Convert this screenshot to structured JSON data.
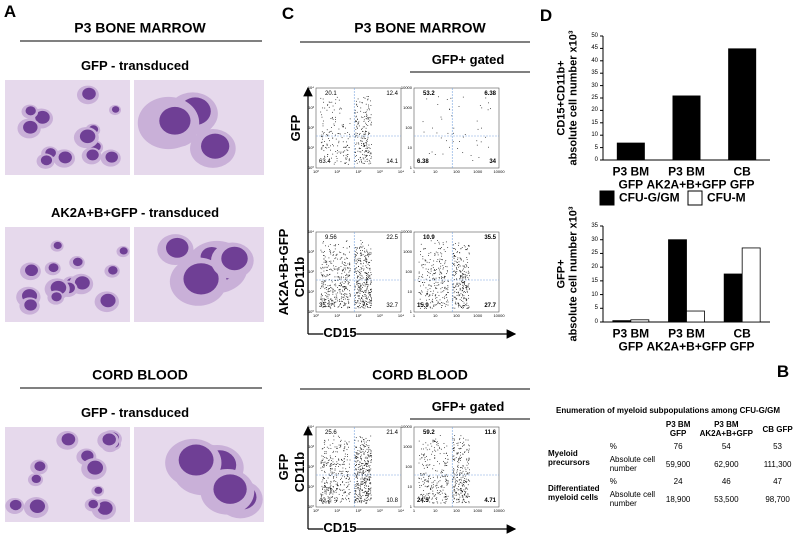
{
  "panel_labels": [
    "A",
    "C",
    "D",
    "B"
  ],
  "panel_a": {
    "blocks": [
      {
        "title": "P3 BONE MARROW",
        "rows": [
          "GFP - transduced",
          "AK2A+B+GFP - transduced"
        ]
      },
      {
        "title": "CORD BLOOD",
        "rows": [
          "GFP - transduced"
        ]
      }
    ]
  },
  "panel_c": {
    "ticks_log": [
      "10⁰",
      "10¹",
      "10²",
      "10³",
      "10⁴"
    ],
    "ticks_lin": [
      "1",
      "10",
      "100",
      "1000",
      "10000"
    ],
    "blocks": [
      {
        "title": "P3 BONE MARROW",
        "gated": "GFP+ gated",
        "xlabel": "CD15",
        "rows": [
          {
            "labels": [
              "GFP"
            ],
            "plots": [
              {
                "q": [
                  20.1,
                  12.4,
                  63.4,
                  14.1
                ]
              },
              {
                "q": [
                  53.2,
                  6.38,
                  6.38,
                  34
                ]
              }
            ]
          },
          {
            "labels": [
              "AK2A+B+GFP",
              "CD11b"
            ],
            "plots": [
              {
                "q": [
                  9.56,
                  22.5,
                  35.2,
                  32.7
                ]
              },
              {
                "q": [
                  10.9,
                  35.5,
                  15.9,
                  27.7
                ]
              }
            ]
          }
        ]
      },
      {
        "title": "CORD BLOOD",
        "gated": "GFP+ gated",
        "xlabel": "CD15",
        "rows": [
          {
            "labels": [
              "GFP",
              "CD11b"
            ],
            "plots": [
              {
                "q": [
                  25.6,
                  21.4,
                  42.2,
                  10.8
                ]
              },
              {
                "q": [
                  59.2,
                  11.6,
                  24.5,
                  4.71
                ]
              }
            ]
          }
        ]
      }
    ]
  },
  "chart_data": [
    {
      "type": "bar",
      "ylabel": "CD15+CD11b+\nabsolute cell number x10³",
      "categories": [
        "P3 BM\nGFP",
        "P3 BM\nAK2A+B+GFP",
        "CB\nGFP"
      ],
      "values": [
        7,
        26,
        45
      ],
      "color": "#000000",
      "ylim": [
        0,
        50
      ],
      "yticks": [
        0,
        5,
        10,
        15,
        20,
        25,
        30,
        35,
        40,
        45,
        50
      ]
    },
    {
      "type": "bar",
      "ylabel": "GFP+\nabsolute cell number x10³",
      "categories": [
        "P3 BM\nGFP",
        "P3 BM\nAK2A+B+GFP",
        "CB\nGFP"
      ],
      "series": [
        {
          "name": "CFU-G/GM",
          "color": "#000000",
          "values": [
            0.5,
            30,
            17.5
          ]
        },
        {
          "name": "CFU-M",
          "color": "#ffffff",
          "values": [
            0.8,
            4,
            27
          ]
        }
      ],
      "legend": "top",
      "ylim": [
        0,
        35
      ],
      "yticks": [
        0,
        5,
        10,
        15,
        20,
        25,
        30,
        35
      ]
    }
  ],
  "table": {
    "title": "Enumeration of myeloid subpopulations among CFU-G/GM",
    "header": [
      "P3 BM\nGFP",
      "P3 BM\nAK2A+B+GFP",
      "CB GFP"
    ],
    "groups": [
      {
        "name": "Myeloid\nprecursors",
        "rows": [
          {
            "label": "%",
            "values": [
              76,
              54,
              53
            ]
          },
          {
            "label": "Absolute cell\nnumber",
            "values": [
              "59,900",
              "62,900",
              "111,300"
            ]
          }
        ]
      },
      {
        "name": "Differentiated\nmyeloid cells",
        "rows": [
          {
            "label": "%",
            "values": [
              24,
              46,
              47
            ]
          },
          {
            "label": "Absolute cell\nnumber",
            "values": [
              "18,900",
              "53,500",
              "98,700"
            ]
          }
        ]
      }
    ]
  }
}
